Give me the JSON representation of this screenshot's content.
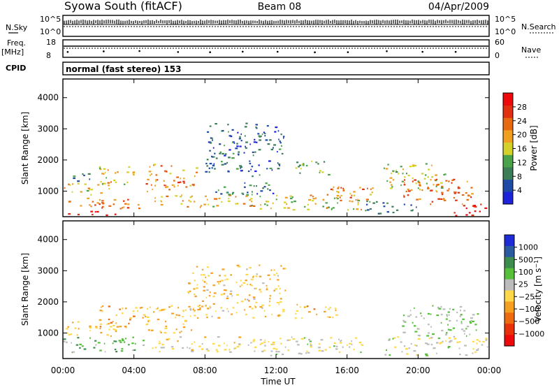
{
  "header": {
    "station": "Syowa South (fitACF)",
    "beam": "Beam 08",
    "date": "04/Apr/2009"
  },
  "status_panels": {
    "nsky_label": "N.Sky",
    "nsky_ticks": [
      "10^5",
      "10^0"
    ],
    "nsearch_label": "N.Search",
    "nsearch_ticks": [
      "10^5",
      "10^0"
    ],
    "freq_label_line1": "Freq.",
    "freq_label_line2": "[MHz]",
    "freq_ticks": [
      "18",
      "8"
    ],
    "nave_label": "Nave",
    "nave_ticks": [
      "60",
      "0"
    ],
    "cpid_label": "CPID",
    "cpid_value": "normal (fast stereo) 153"
  },
  "colors": {
    "power_scale": [
      "#1e22d8",
      "#1f4aa6",
      "#3d7d55",
      "#4aa34a",
      "#d4d22a",
      "#f0a020",
      "#e86a10",
      "#e03010",
      "#ee0a0a"
    ],
    "velocity_scale": [
      "#1e2cd8",
      "#2a5aa0",
      "#3f8d4e",
      "#56c03a",
      "#bcbcbc",
      "#ffd84a",
      "#f5a020",
      "#ee6a10",
      "#e8300a",
      "#ee0a0a"
    ]
  },
  "chart_data": [
    {
      "type": "heatmap",
      "name": "power-panel",
      "ylabel": "Slant Range [km]",
      "yticks": [
        1000,
        2000,
        3000,
        4000
      ],
      "ylim": [
        180,
        4600
      ],
      "xlim": [
        0,
        24
      ],
      "colorbar": {
        "label": "Power [dB]",
        "ticks": [
          "4",
          "8",
          "12",
          "16",
          "20",
          "24",
          "28"
        ],
        "range": [
          0,
          30
        ]
      },
      "bands": [
        {
          "t0": 0.0,
          "t1": 3.0,
          "r0": 250,
          "r1": 400,
          "val": 28
        },
        {
          "t0": 0.0,
          "t1": 4.5,
          "r0": 450,
          "r1": 800,
          "val": 22
        },
        {
          "t0": 0.0,
          "t1": 2.5,
          "r0": 900,
          "r1": 1300,
          "val": 18
        },
        {
          "t0": 0.3,
          "t1": 1.5,
          "r0": 1300,
          "r1": 1600,
          "val": 8
        },
        {
          "t0": 2.0,
          "t1": 4.0,
          "r0": 1100,
          "r1": 1800,
          "val": 16
        },
        {
          "t0": 4.5,
          "t1": 7.5,
          "r0": 1000,
          "r1": 1900,
          "val": 20
        },
        {
          "t0": 5.0,
          "t1": 11.0,
          "r0": 500,
          "r1": 900,
          "val": 18
        },
        {
          "t0": 8.0,
          "t1": 12.0,
          "r0": 900,
          "r1": 1300,
          "val": 8
        },
        {
          "t0": 8.0,
          "t1": 12.5,
          "r0": 1500,
          "r1": 3200,
          "val": 6
        },
        {
          "t0": 11.0,
          "t1": 17.0,
          "r0": 400,
          "r1": 900,
          "val": 16
        },
        {
          "t0": 13.0,
          "t1": 15.0,
          "r0": 1500,
          "r1": 2000,
          "val": 12
        },
        {
          "t0": 14.0,
          "t1": 17.5,
          "r0": 700,
          "r1": 1200,
          "val": 20
        },
        {
          "t0": 17.0,
          "t1": 20.0,
          "r0": 300,
          "r1": 700,
          "val": 8
        },
        {
          "t0": 18.0,
          "t1": 21.5,
          "r0": 1000,
          "r1": 1900,
          "val": 14
        },
        {
          "t0": 19.0,
          "t1": 23.0,
          "r0": 600,
          "r1": 1400,
          "val": 22
        },
        {
          "t0": 22.0,
          "t1": 24.0,
          "r0": 200,
          "r1": 600,
          "val": 28
        }
      ]
    },
    {
      "type": "heatmap",
      "name": "velocity-panel",
      "xlabel": "Time UT",
      "ylabel": "Slant Range [km]",
      "xticks": [
        "00:00",
        "04:00",
        "08:00",
        "12:00",
        "16:00",
        "20:00",
        "00:00"
      ],
      "yticks": [
        1000,
        2000,
        3000,
        4000
      ],
      "ylim": [
        180,
        4600
      ],
      "xlim": [
        0,
        24
      ],
      "colorbar": {
        "label": "Velocity [m s^-1]",
        "ticks": [
          "1000",
          "500",
          "100",
          "25",
          "−25",
          "−100",
          "−500",
          "−1000"
        ],
        "range": [
          -1000,
          1000
        ]
      },
      "bands": [
        {
          "t0": 0.0,
          "t1": 4.5,
          "r0": 400,
          "r1": 900,
          "val": 300
        },
        {
          "t0": 0.0,
          "t1": 3.0,
          "r0": 900,
          "r1": 1400,
          "val": -200
        },
        {
          "t0": 2.0,
          "t1": 4.5,
          "r0": 1200,
          "r1": 1900,
          "val": -300
        },
        {
          "t0": 4.5,
          "t1": 7.5,
          "r0": 1000,
          "r1": 1900,
          "val": -200
        },
        {
          "t0": 5.0,
          "t1": 12.0,
          "r0": 400,
          "r1": 900,
          "val": -50
        },
        {
          "t0": 7.0,
          "t1": 12.5,
          "r0": 1500,
          "r1": 3200,
          "val": -150
        },
        {
          "t0": 11.5,
          "t1": 17.0,
          "r0": 300,
          "r1": 900,
          "val": 40
        },
        {
          "t0": 13.0,
          "t1": 15.5,
          "r0": 1500,
          "r1": 2000,
          "val": -250
        },
        {
          "t0": 18.0,
          "t1": 24.0,
          "r0": 300,
          "r1": 900,
          "val": 60
        },
        {
          "t0": 19.0,
          "t1": 23.5,
          "r0": 900,
          "r1": 1900,
          "val": 200
        }
      ]
    }
  ]
}
